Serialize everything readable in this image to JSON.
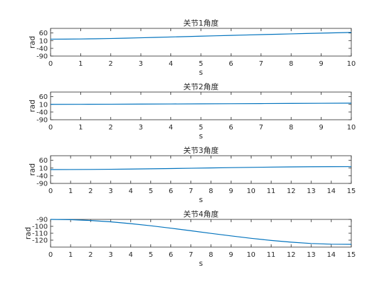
{
  "chart_data": [
    {
      "type": "line",
      "title": "关节1角度",
      "xlabel": "s",
      "ylabel": "rad",
      "xlim": [
        0,
        10
      ],
      "ylim": [
        -90,
        90
      ],
      "xticks": [
        0,
        1,
        2,
        3,
        4,
        5,
        6,
        7,
        8,
        9,
        10
      ],
      "yticks": [
        60,
        10,
        -40,
        -90
      ],
      "grid": false,
      "line_color": "#0072BD",
      "series": [
        {
          "x": [
            0,
            0.5,
            1,
            1.5,
            2,
            2.5,
            3,
            3.5,
            4,
            4.5,
            5,
            5.5,
            6,
            6.5,
            7,
            7.5,
            8,
            8.5,
            9,
            9.5,
            10
          ],
          "y": [
            20,
            20.3,
            21.2,
            22.6,
            24.4,
            26.5,
            28.9,
            31.4,
            34.0,
            36.7,
            39.3,
            41.9,
            44.5,
            47.0,
            49.5,
            51.9,
            54.3,
            56.7,
            59.0,
            61.3,
            63.6
          ]
        }
      ]
    },
    {
      "type": "line",
      "title": "关节2角度",
      "xlabel": "s",
      "ylabel": "rad",
      "xlim": [
        0,
        10
      ],
      "ylim": [
        -90,
        90
      ],
      "xticks": [
        0,
        1,
        2,
        3,
        4,
        5,
        6,
        7,
        8,
        9,
        10
      ],
      "yticks": [
        60,
        10,
        -40,
        -90
      ],
      "grid": false,
      "line_color": "#0072BD",
      "series": [
        {
          "x": [
            0,
            1,
            2,
            3,
            4,
            5,
            6,
            7,
            8,
            9,
            10
          ],
          "y": [
            10,
            10.4,
            11.0,
            11.8,
            12.6,
            13.5,
            14.4,
            15.3,
            16.2,
            17.1,
            18.0
          ]
        }
      ]
    },
    {
      "type": "line",
      "title": "关节3角度",
      "xlabel": "s",
      "ylabel": "rad",
      "xlim": [
        0,
        15
      ],
      "ylim": [
        -90,
        90
      ],
      "xticks": [
        0,
        1,
        2,
        3,
        4,
        5,
        6,
        7,
        8,
        9,
        10,
        11,
        12,
        13,
        14,
        15
      ],
      "yticks": [
        60,
        10,
        -40,
        -90
      ],
      "grid": false,
      "line_color": "#0072BD",
      "series": [
        {
          "x": [
            0,
            1,
            2,
            3,
            4,
            5,
            6,
            7,
            8,
            9,
            10,
            11,
            12,
            13,
            14,
            15
          ],
          "y": [
            0,
            0.2,
            0.9,
            2.0,
            3.4,
            5.0,
            6.8,
            8.7,
            10.7,
            12.6,
            14.4,
            16.0,
            17.4,
            18.5,
            19.2,
            19.5
          ]
        }
      ]
    },
    {
      "type": "line",
      "title": "关节4角度",
      "xlabel": "s",
      "ylabel": "rad",
      "xlim": [
        0,
        15
      ],
      "ylim": [
        -130,
        -90
      ],
      "xticks": [
        0,
        1,
        2,
        3,
        4,
        5,
        6,
        7,
        8,
        9,
        10,
        11,
        12,
        13,
        14,
        15
      ],
      "yticks": [
        -90,
        -100,
        -110,
        -120
      ],
      "grid": false,
      "line_color": "#0072BD",
      "series": [
        {
          "x": [
            0,
            1,
            2,
            3,
            4,
            5,
            6,
            7,
            8,
            9,
            10,
            11,
            12,
            13,
            14,
            15
          ],
          "y": [
            -90.0,
            -90.4,
            -91.6,
            -93.5,
            -96.1,
            -99.2,
            -102.7,
            -106.4,
            -110.2,
            -113.8,
            -117.3,
            -120.4,
            -122.9,
            -124.8,
            -125.8,
            -126.0
          ]
        }
      ]
    }
  ]
}
